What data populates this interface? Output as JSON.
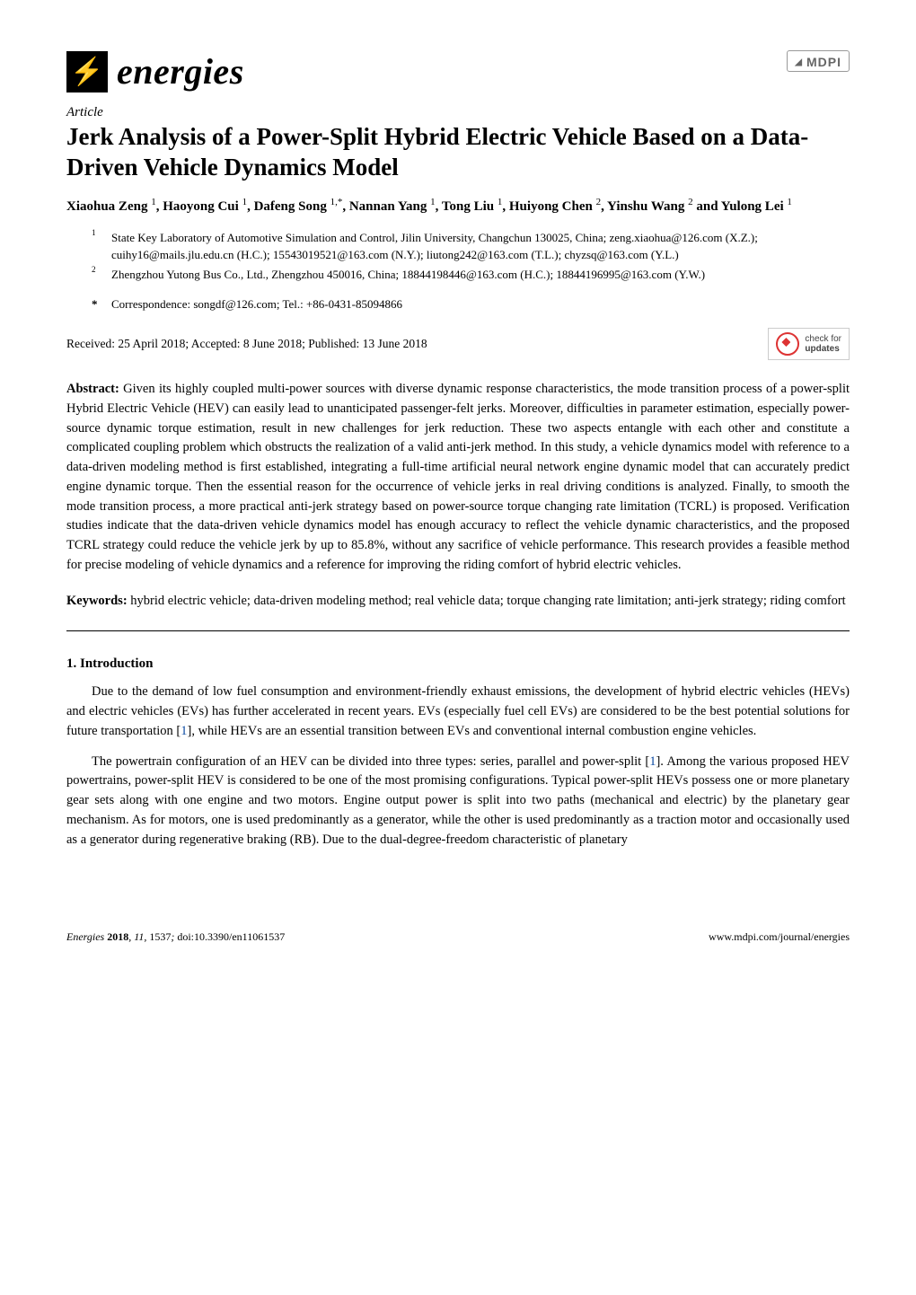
{
  "journal": {
    "name": "energies",
    "publisher_logo": "MDPI"
  },
  "article_label": "Article",
  "title": "Jerk Analysis of a Power-Split Hybrid Electric Vehicle Based on a Data-Driven Vehicle Dynamics Model",
  "authors_html": "Xiaohua Zeng ¹, Haoyong Cui ¹, Dafeng Song ¹·*, Nannan Yang ¹, Tong Liu ¹, Huiyong Chen ², Yinshu Wang ² and Yulong Lei ¹",
  "authors": [
    {
      "name": "Xiaohua Zeng",
      "sup": "1"
    },
    {
      "name": "Haoyong Cui",
      "sup": "1"
    },
    {
      "name": "Dafeng Song",
      "sup": "1,*"
    },
    {
      "name": "Nannan Yang",
      "sup": "1"
    },
    {
      "name": "Tong Liu",
      "sup": "1"
    },
    {
      "name": "Huiyong Chen",
      "sup": "2"
    },
    {
      "name": "Yinshu Wang",
      "sup": "2"
    },
    {
      "name": "Yulong Lei",
      "sup": "1"
    }
  ],
  "affiliations": [
    {
      "num": "1",
      "text": "State Key Laboratory of Automotive Simulation and Control, Jilin University, Changchun 130025, China; zeng.xiaohua@126.com (X.Z.); cuihy16@mails.jlu.edu.cn (H.C.); 15543019521@163.com (N.Y.); liutong242@163.com (T.L.); chyzsq@163.com (Y.L.)"
    },
    {
      "num": "2",
      "text": "Zhengzhou Yutong Bus Co., Ltd., Zhengzhou 450016, China; 18844198446@163.com (H.C.); 18844196995@163.com (Y.W.)"
    }
  ],
  "correspondence": {
    "star": "*",
    "text": "Correspondence: songdf@126.com; Tel.: +86-0431-85094866"
  },
  "dates": "Received: 25 April 2018; Accepted: 8 June 2018; Published: 13 June 2018",
  "check_updates_label": "check for",
  "check_updates_bold": "updates",
  "abstract": {
    "label": "Abstract:",
    "text": "Given its highly coupled multi-power sources with diverse dynamic response characteristics, the mode transition process of a power-split Hybrid Electric Vehicle (HEV) can easily lead to unanticipated passenger-felt jerks. Moreover, difficulties in parameter estimation, especially power-source dynamic torque estimation, result in new challenges for jerk reduction. These two aspects entangle with each other and constitute a complicated coupling problem which obstructs the realization of a valid anti-jerk method. In this study, a vehicle dynamics model with reference to a data-driven modeling method is first established, integrating a full-time artificial neural network engine dynamic model that can accurately predict engine dynamic torque. Then the essential reason for the occurrence of vehicle jerks in real driving conditions is analyzed. Finally, to smooth the mode transition process, a more practical anti-jerk strategy based on power-source torque changing rate limitation (TCRL) is proposed. Verification studies indicate that the data-driven vehicle dynamics model has enough accuracy to reflect the vehicle dynamic characteristics, and the proposed TCRL strategy could reduce the vehicle jerk by up to 85.8%, without any sacrifice of vehicle performance. This research provides a feasible method for precise modeling of vehicle dynamics and a reference for improving the riding comfort of hybrid electric vehicles."
  },
  "keywords": {
    "label": "Keywords:",
    "text": "hybrid electric vehicle; data-driven modeling method; real vehicle data; torque changing rate limitation; anti-jerk strategy; riding comfort"
  },
  "section1": {
    "heading": "1. Introduction",
    "para1_pre": "Due to the demand of low fuel consumption and environment-friendly exhaust emissions, the development of hybrid electric vehicles (HEVs) and electric vehicles (EVs) has further accelerated in recent years. EVs (especially fuel cell EVs) are considered to be the best potential solutions for future transportation [",
    "para1_ref1": "1",
    "para1_post": "], while HEVs are an essential transition between EVs and conventional internal combustion engine vehicles.",
    "para2_pre": "The powertrain configuration of an HEV can be divided into three types: series, parallel and power-split [",
    "para2_ref1": "1",
    "para2_post": "]. Among the various proposed HEV powertrains, power-split HEV is considered to be one of the most promising configurations. Typical power-split HEVs possess one or more planetary gear sets along with one engine and two motors. Engine output power is split into two paths (mechanical and electric) by the planetary gear mechanism. As for motors, one is used predominantly as a generator, while the other is used predominantly as a traction motor and occasionally used as a generator during regenerative braking (RB). Due to the dual-degree-freedom characteristic of planetary"
  },
  "footer": {
    "left_journal": "Energies",
    "left_year": "2018",
    "left_vol": "11",
    "left_art": "1537",
    "left_doi": "doi:10.3390/en11061537",
    "right": "www.mdpi.com/journal/energies"
  },
  "colors": {
    "ref_link": "#0b4aa2",
    "bolt": "#9acd32"
  },
  "typography": {
    "body_fontsize_pt": 11,
    "title_fontsize_pt": 20,
    "journal_fontsize_pt": 30
  }
}
